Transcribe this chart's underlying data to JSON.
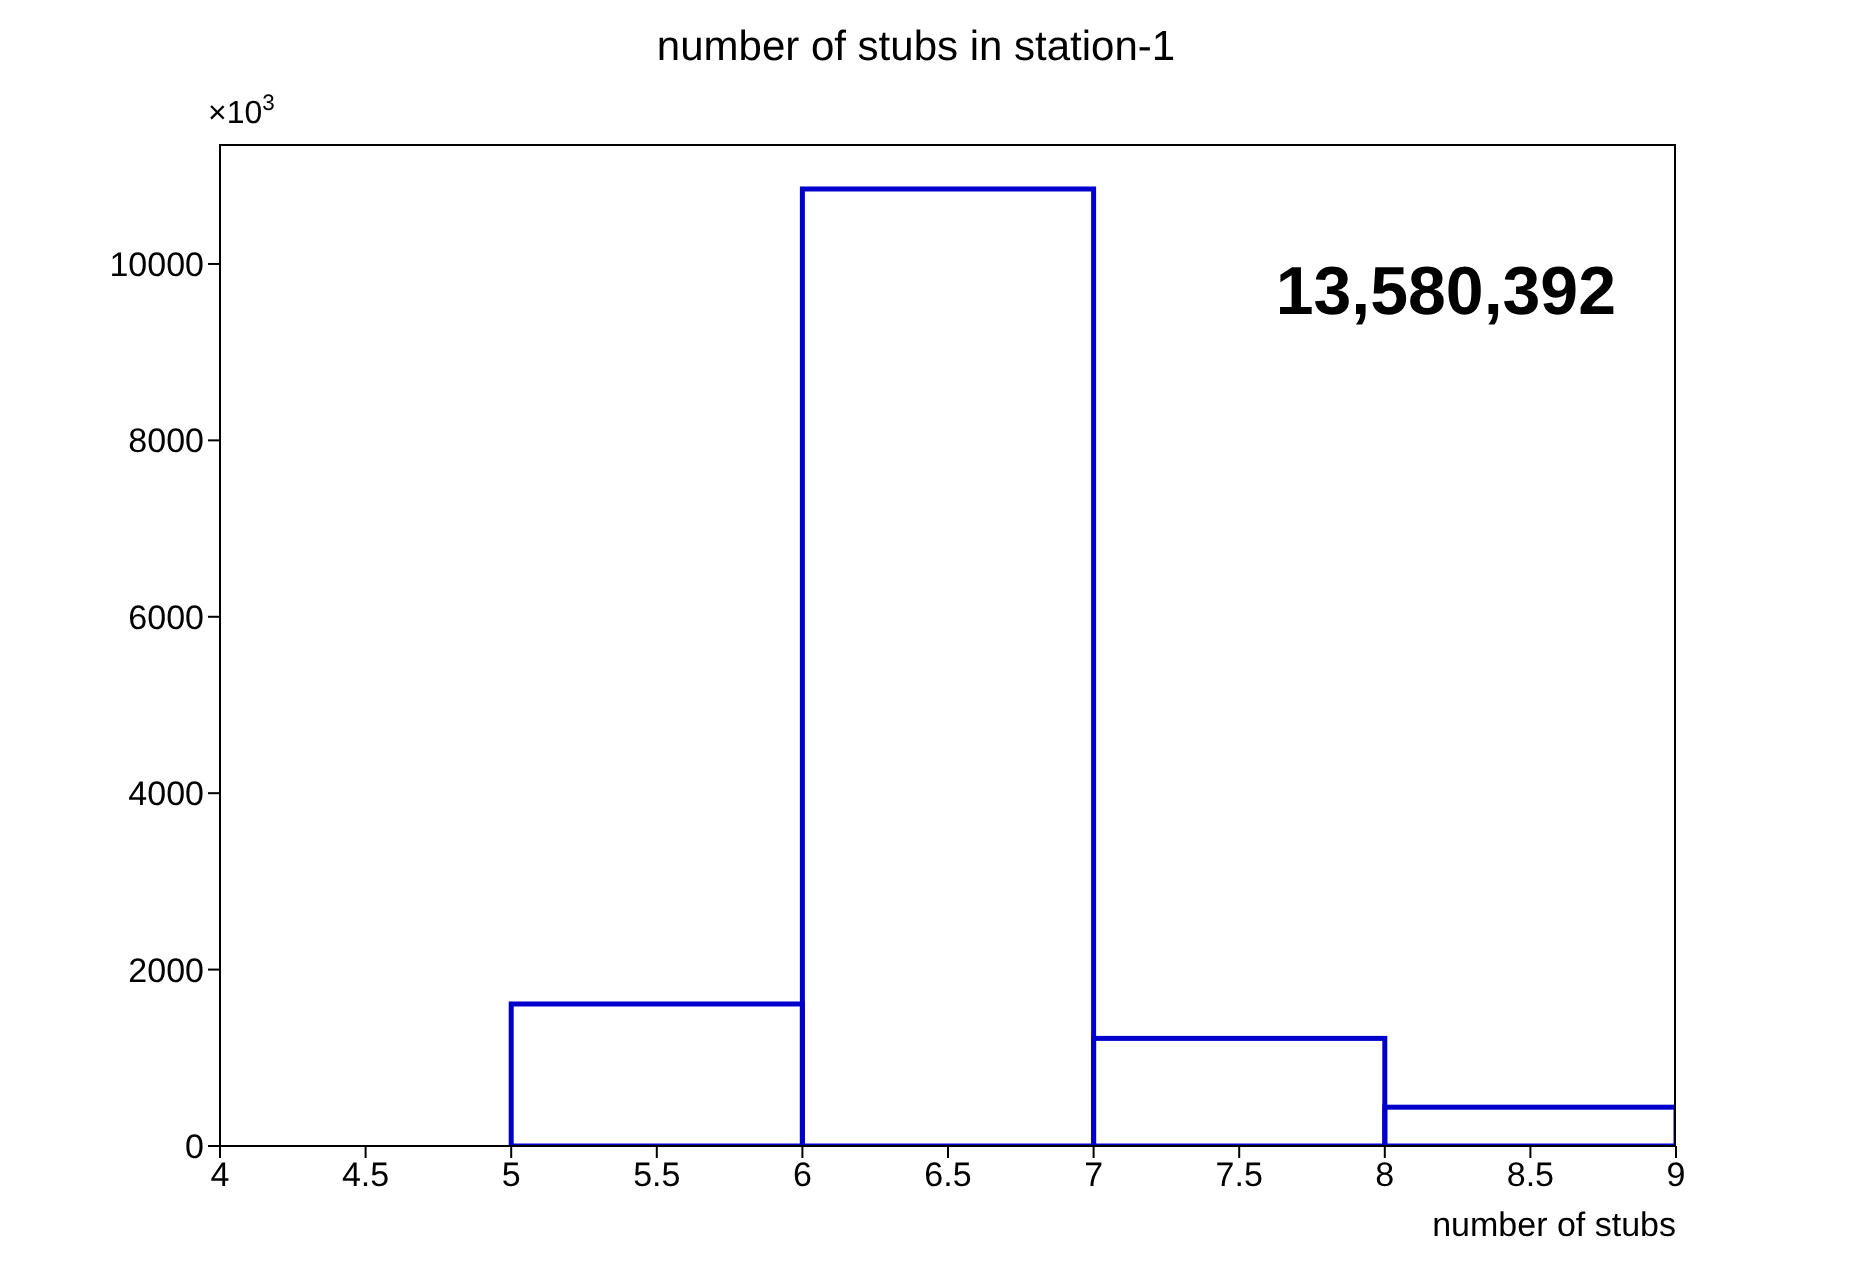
{
  "chart_data": {
    "type": "histogram",
    "title": "number of stubs in station-1",
    "xlabel": "number of stubs",
    "ylabel": "×10$^{3}$",
    "bins": [
      4,
      5,
      6,
      7,
      8,
      9
    ],
    "values": [
      0,
      1610,
      10850,
      1220,
      440
    ],
    "color": "#0000cc",
    "xlim": [
      4,
      9
    ],
    "xticks": [
      4,
      4.5,
      5,
      5.5,
      6,
      6.5,
      7,
      7.5,
      8,
      8.5,
      9
    ],
    "ylim": [
      0,
      11360
    ],
    "yticks": [
      0,
      2000,
      4000,
      6000,
      8000,
      10000
    ],
    "annotations": [
      "13,580,392"
    ]
  }
}
